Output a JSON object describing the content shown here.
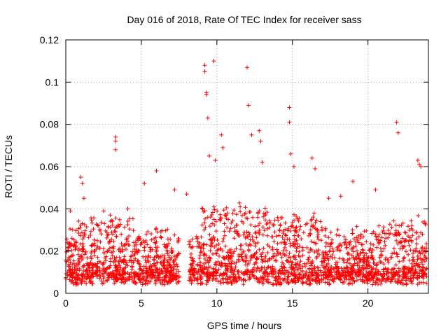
{
  "chart_data": {
    "type": "scatter",
    "title": "Day 016 of 2018, Rate Of TEC Index for receiver sass",
    "xlabel": "GPS time / hours",
    "ylabel": "ROTI / TECUs",
    "xlim": [
      0,
      24
    ],
    "ylim": [
      0,
      0.12
    ],
    "x_ticks": [
      0,
      5,
      10,
      15,
      20
    ],
    "x_tick_labels": [
      "0",
      "5",
      "10",
      "15",
      "20"
    ],
    "y_ticks": [
      0,
      0.02,
      0.04,
      0.06,
      0.08,
      0.1,
      0.12
    ],
    "y_tick_labels": [
      "0",
      "0.02",
      "0.04",
      "0.06",
      "0.08",
      "0.1",
      "0.12"
    ],
    "grid": true,
    "marker": "+",
    "color": "#ff0000",
    "series": [
      {
        "name": "ROTI",
        "description_of_distribution": "dense cloud mostly between 0.005 and 0.03 TECU/min over 0–23.9 h, gap near 7.5–8.2 h",
        "x": [
          0.1,
          0.3,
          1.0,
          1.1,
          1.2,
          3.3,
          3.3,
          3.3,
          9.2,
          9.2,
          9.3,
          9.3,
          9.4,
          9.5,
          9.8,
          9.9,
          10.3,
          10.4,
          12.0,
          12.1,
          12.3,
          12.8,
          12.9,
          13.0,
          14.8,
          14.8,
          14.9,
          15.1,
          16.3,
          16.5,
          19.0,
          20.5,
          21.9,
          22.0,
          23.3,
          23.4,
          23.5,
          6.0,
          5.2,
          7.2,
          8.0,
          4.1,
          2.5,
          17.4,
          18.2
        ],
        "y": [
          0.024,
          0.039,
          0.055,
          0.052,
          0.045,
          0.074,
          0.072,
          0.068,
          0.108,
          0.105,
          0.095,
          0.094,
          0.083,
          0.065,
          0.11,
          0.063,
          0.075,
          0.069,
          0.107,
          0.089,
          0.075,
          0.077,
          0.072,
          0.062,
          0.088,
          0.081,
          0.066,
          0.06,
          0.064,
          0.059,
          0.053,
          0.049,
          0.081,
          0.076,
          0.063,
          0.061,
          0.06,
          0.058,
          0.052,
          0.049,
          0.047,
          0.04,
          0.039,
          0.045,
          0.046
        ]
      }
    ]
  }
}
